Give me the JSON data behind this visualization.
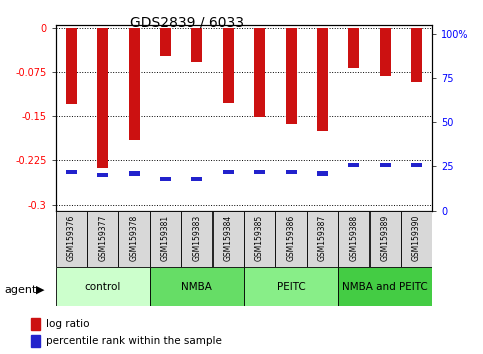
{
  "title": "GDS2839 / 6033",
  "samples": [
    "GSM159376",
    "GSM159377",
    "GSM159378",
    "GSM159381",
    "GSM159383",
    "GSM159384",
    "GSM159385",
    "GSM159386",
    "GSM159387",
    "GSM159388",
    "GSM159389",
    "GSM159390"
  ],
  "log_ratios": [
    -0.13,
    -0.237,
    -0.19,
    -0.048,
    -0.058,
    -0.128,
    -0.152,
    -0.163,
    -0.175,
    -0.068,
    -0.082,
    -0.092
  ],
  "percentile_ranks": [
    22,
    20,
    21,
    18,
    18,
    22,
    22,
    22,
    21,
    26,
    26,
    26
  ],
  "groups": [
    {
      "label": "control",
      "start": 0,
      "end": 3,
      "color": "#ccffcc"
    },
    {
      "label": "NMBA",
      "start": 3,
      "end": 6,
      "color": "#66dd66"
    },
    {
      "label": "PEITC",
      "start": 6,
      "end": 9,
      "color": "#88ee88"
    },
    {
      "label": "NMBA and PEITC",
      "start": 9,
      "end": 12,
      "color": "#44cc44"
    }
  ],
  "ylim_left": [
    -0.31,
    0.005
  ],
  "ylim_right": [
    0,
    105
  ],
  "yticks_left": [
    0,
    -0.075,
    -0.15,
    -0.225,
    -0.3
  ],
  "yticks_right": [
    0,
    25,
    50,
    75,
    100
  ],
  "bar_color": "#cc1111",
  "percentile_color": "#2222cc",
  "bar_width": 0.35,
  "legend_log_label": "log ratio",
  "legend_pct_label": "percentile rank within the sample",
  "agent_label": "agent",
  "title_fontsize": 10,
  "tick_fontsize": 7,
  "sample_fontsize": 5.5,
  "group_fontsize": 7.5,
  "legend_fontsize": 7.5
}
